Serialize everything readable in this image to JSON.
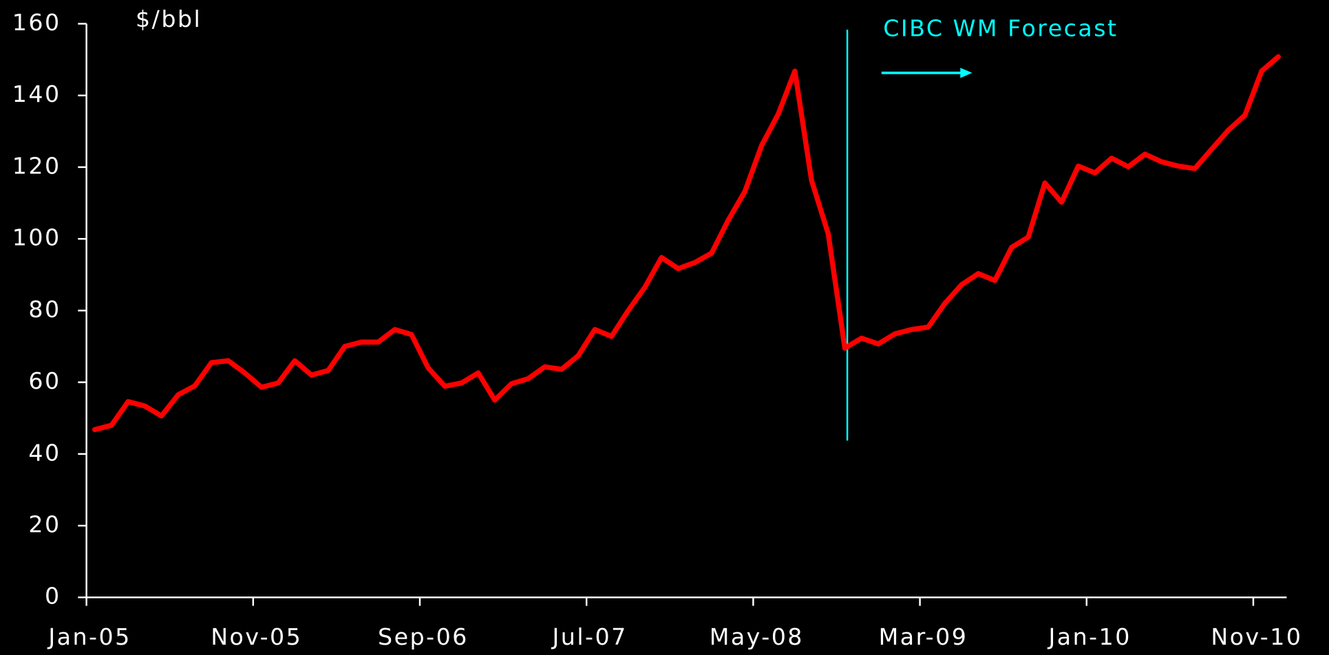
{
  "chart_data": {
    "type": "line",
    "y_label": "$/bbl",
    "annotation": "CIBC WM Forecast",
    "categories": [
      "Jan-05",
      null,
      null,
      null,
      null,
      null,
      null,
      null,
      null,
      null,
      "Nov-05",
      null,
      null,
      null,
      null,
      null,
      null,
      null,
      null,
      null,
      "Sep-06",
      null,
      null,
      null,
      null,
      null,
      null,
      null,
      null,
      null,
      "Jul-07",
      null,
      null,
      null,
      null,
      null,
      null,
      null,
      null,
      null,
      "May-08",
      null,
      null,
      null,
      null,
      null,
      null,
      null,
      null,
      null,
      "Mar-09",
      null,
      null,
      null,
      null,
      null,
      null,
      null,
      null,
      null,
      "Jan-10",
      null,
      null,
      null,
      null,
      null,
      null,
      null,
      null,
      null,
      "Nov-10",
      null
    ],
    "series": [
      {
        "color": "#ff0000",
        "values": [
          46.8,
          48,
          54.6,
          53.4,
          50.6,
          56.5,
          59,
          65.5,
          66,
          62.6,
          58.6,
          59.8,
          66,
          62,
          63.3,
          70,
          71.2,
          71.2,
          74.7,
          73.3,
          64,
          58.9,
          59.8,
          62.6,
          55,
          59.6,
          61,
          64.3,
          63.6,
          67.4,
          74.7,
          72.8,
          80,
          86.5,
          94.8,
          91.7,
          93.4,
          96,
          105.2,
          113.2,
          126,
          134.8,
          146.8,
          116.3,
          101.4,
          69.5,
          72.3,
          70.7,
          73.5,
          74.7,
          75.4,
          82,
          87.2,
          90.3,
          88.4,
          97.6,
          100.5,
          115.6,
          110.2,
          120.3,
          118.4,
          122.5,
          120.1,
          123.6,
          121.5,
          120.3,
          119.6,
          125,
          130.3,
          134.5,
          146.8,
          150.8
        ]
      }
    ],
    "ylim": [
      0,
      160
    ],
    "yticks": [
      0,
      20,
      40,
      60,
      80,
      100,
      120,
      140,
      160
    ],
    "grid": false,
    "axis_color": "#ffffff",
    "annotation_color": "#00ffff"
  }
}
